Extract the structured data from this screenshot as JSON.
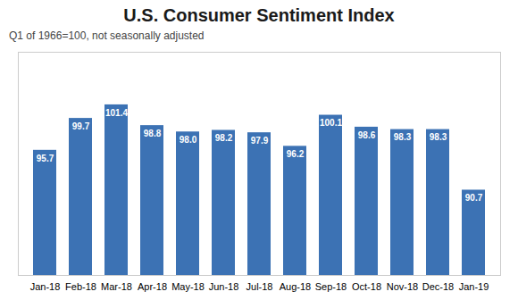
{
  "chart_data": {
    "type": "bar",
    "title": "U.S. Consumer Sentiment Index",
    "subtitle": "Q1 of 1966=100, not seasonally adjusted",
    "categories": [
      "Jan-18",
      "Feb-18",
      "Mar-18",
      "Apr-18",
      "May-18",
      "Jun-18",
      "Jul-18",
      "Aug-18",
      "Sep-18",
      "Oct-18",
      "Nov-18",
      "Dec-18",
      "Jan-19"
    ],
    "values": [
      95.7,
      99.7,
      101.4,
      98.8,
      98.0,
      98.2,
      97.9,
      96.2,
      100.1,
      98.6,
      98.3,
      98.3,
      90.7
    ],
    "value_labels": [
      "95.7",
      "99.7",
      "101.4",
      "98.8",
      "98.0",
      "98.2",
      "97.9",
      "96.2",
      "100.1",
      "98.6",
      "98.3",
      "98.3",
      "90.7"
    ],
    "color": "#3C72B4",
    "ylim": [
      80,
      108
    ],
    "grid": false,
    "data_labels": true,
    "tick_labels": "x"
  }
}
